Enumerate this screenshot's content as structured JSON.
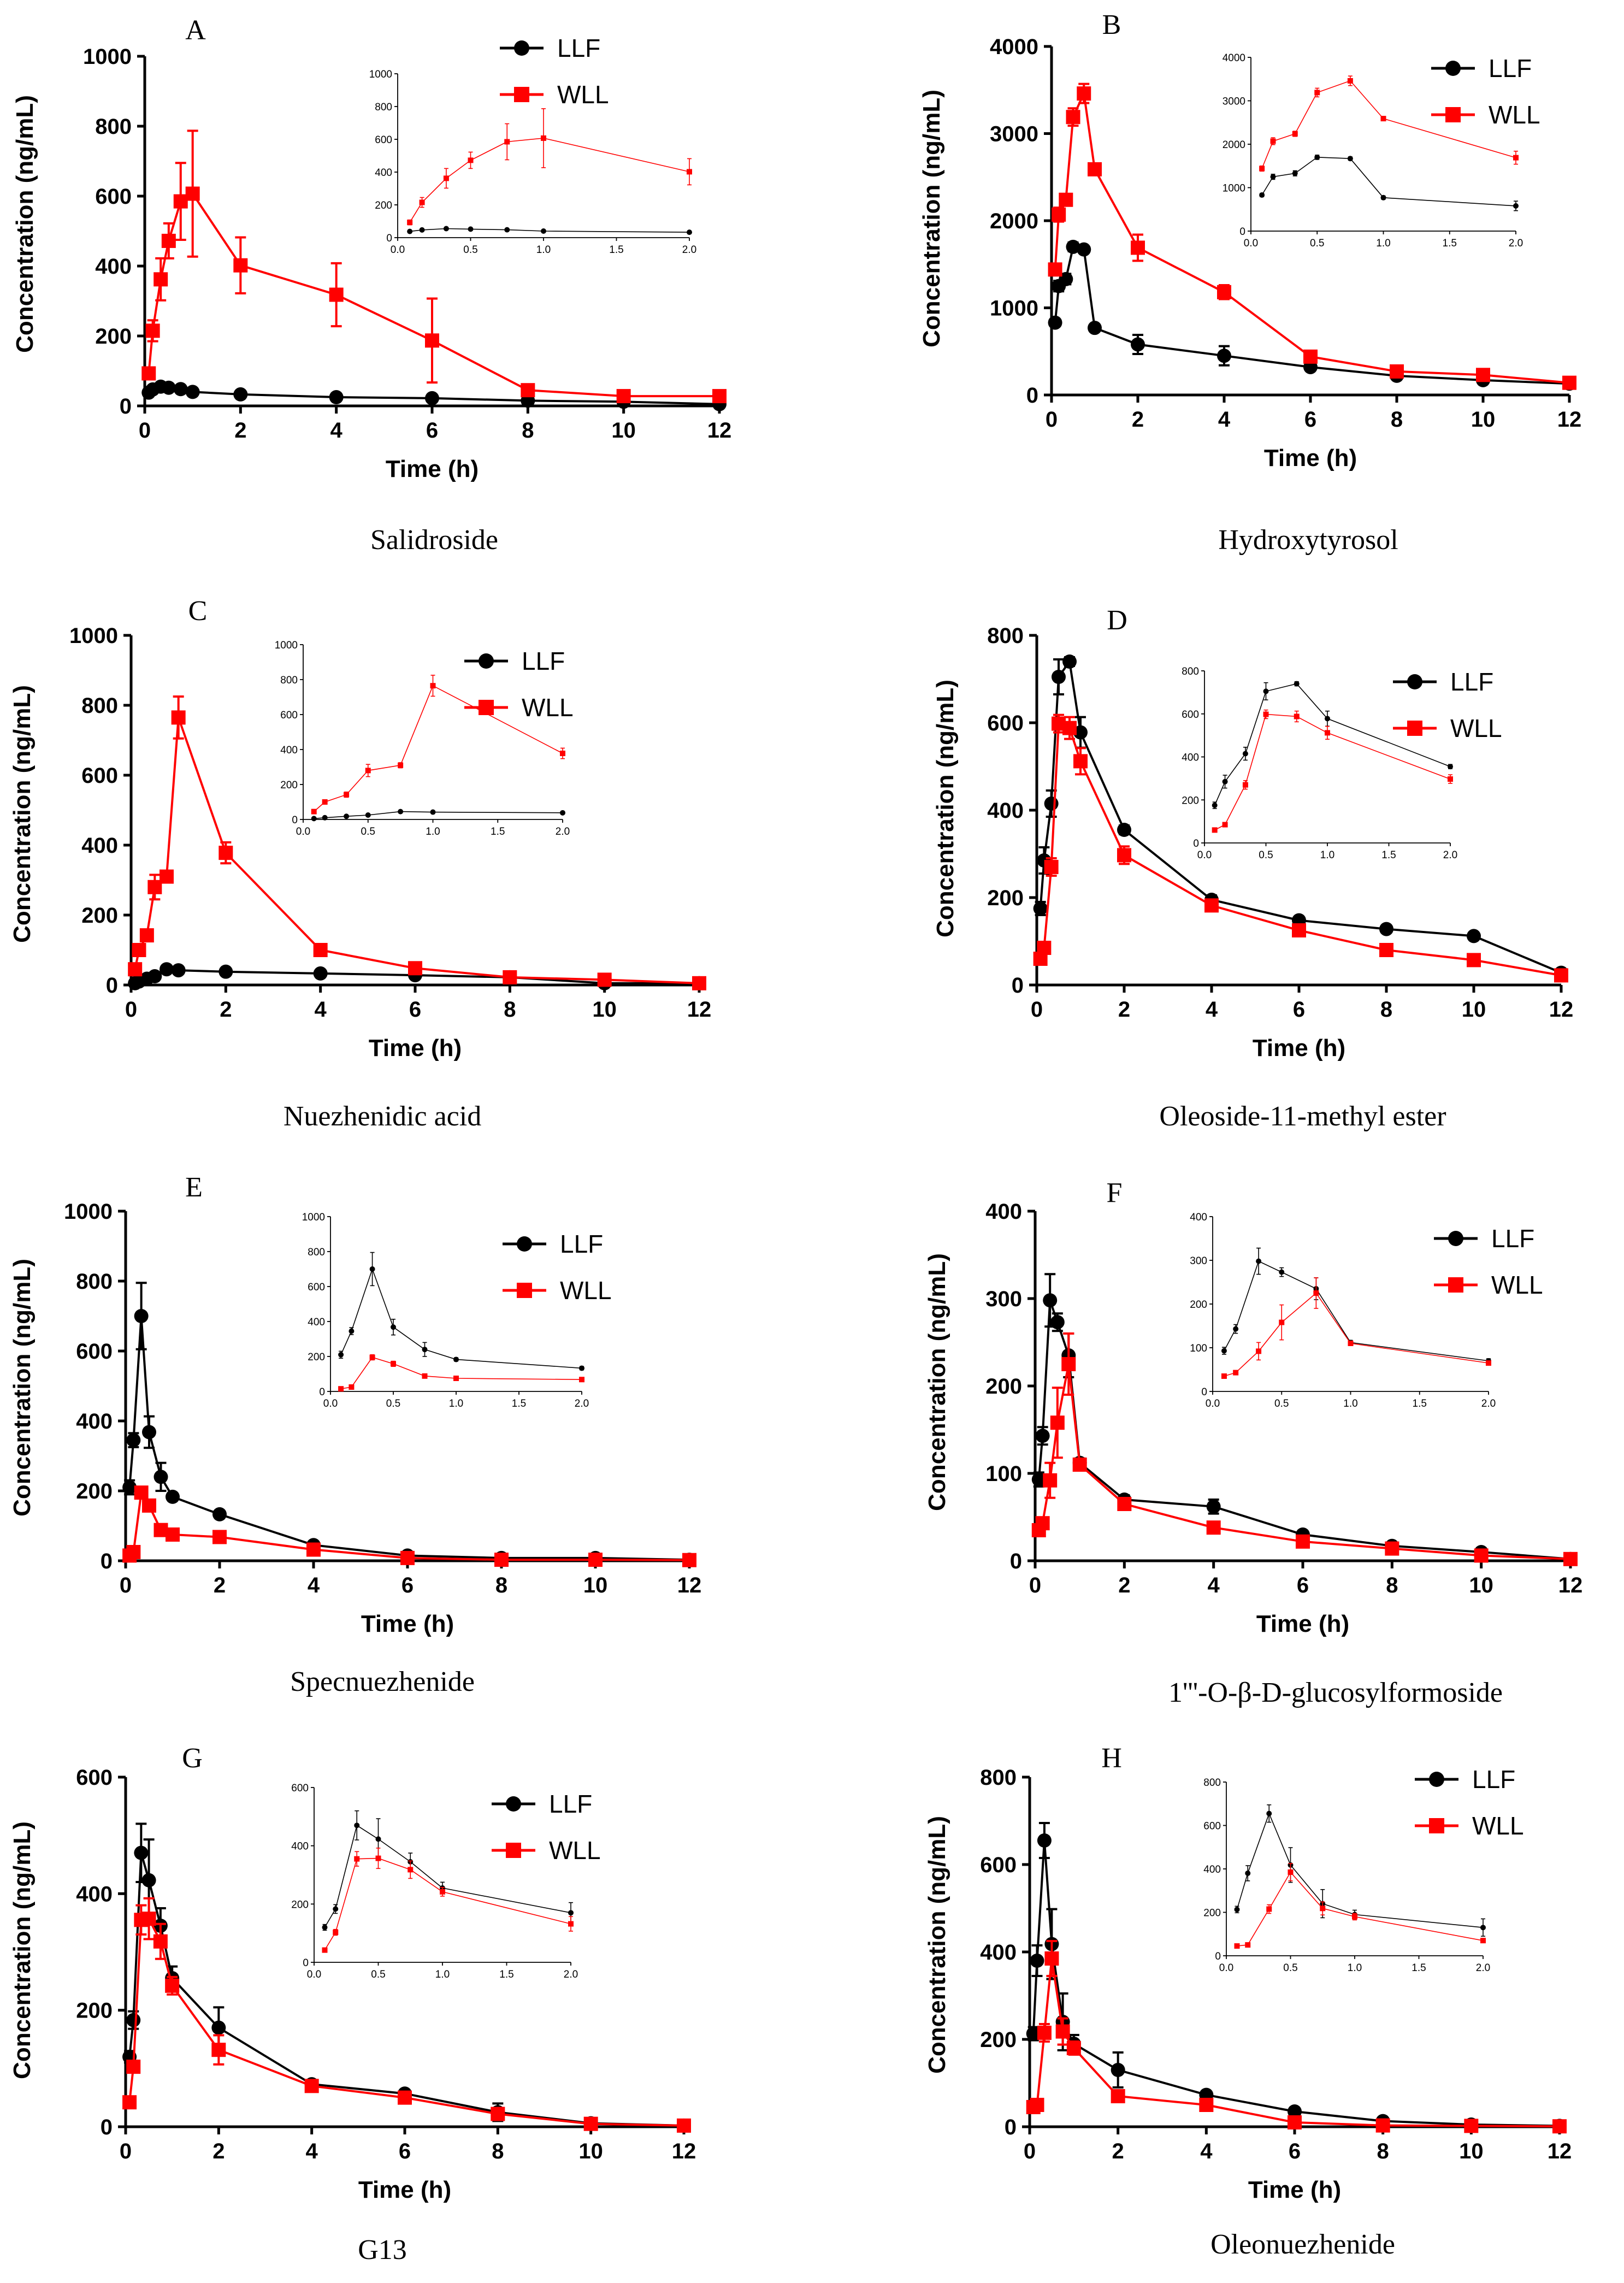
{
  "figure": {
    "x_axis_label": "Time (h)",
    "y_axis_label": "Concentration (ng/mL)",
    "legend": [
      "LLF",
      "WLL"
    ],
    "series_colors": {
      "LLF": "#000000",
      "WLL": "#ff0000"
    }
  },
  "chart_data": [
    {
      "type": "line",
      "letter": "A",
      "title": "Salidroside",
      "xlabel": "Time (h)",
      "ylabel": "Concentration (ng/mL)",
      "xlim": [
        0,
        12
      ],
      "xticks": [
        0,
        2,
        4,
        6,
        8,
        10,
        12
      ],
      "ylim": [
        0,
        1000
      ],
      "yticks": [
        0,
        200,
        400,
        600,
        800,
        1000
      ],
      "legend_position": "top-right",
      "x": [
        0.083,
        0.167,
        0.333,
        0.5,
        0.75,
        1,
        2,
        4,
        6,
        8,
        10,
        12
      ],
      "series": [
        {
          "name": "LLF",
          "color": "#000000",
          "marker": "circle",
          "values": [
            38,
            47,
            55,
            52,
            48,
            40,
            33,
            25,
            22,
            15,
            12,
            5
          ],
          "errors": [
            5,
            5,
            6,
            6,
            5,
            4,
            4,
            3,
            3,
            2,
            2,
            1
          ]
        },
        {
          "name": "WLL",
          "color": "#ff0000",
          "marker": "square",
          "values": [
            93,
            215,
            362,
            472,
            585,
            607,
            402,
            318,
            187,
            45,
            28,
            28
          ],
          "errors": [
            15,
            30,
            60,
            50,
            110,
            180,
            80,
            90,
            120,
            10,
            6,
            5
          ]
        }
      ],
      "inset": {
        "xlim": [
          0,
          2
        ],
        "xticks": [
          0.0,
          0.5,
          1.0,
          1.5,
          2.0
        ],
        "xtick_labels": [
          "0.0",
          "0.5",
          "1.0",
          "1.5",
          "2.0"
        ],
        "ylim": [
          0,
          1000
        ],
        "yticks": [
          0,
          200,
          400,
          600,
          800,
          1000
        ]
      }
    },
    {
      "type": "line",
      "letter": "B",
      "title": "Hydroxytyrosol",
      "xlabel": "Time (h)",
      "ylabel": "Concentration (ng/mL)",
      "xlim": [
        0,
        12
      ],
      "xticks": [
        0,
        2,
        4,
        6,
        8,
        10,
        12
      ],
      "ylim": [
        0,
        4000
      ],
      "yticks": [
        0,
        1000,
        2000,
        3000,
        4000
      ],
      "legend_position": "top-right",
      "x": [
        0.083,
        0.167,
        0.333,
        0.5,
        0.75,
        1,
        2,
        4,
        6,
        8,
        10,
        12
      ],
      "series": [
        {
          "name": "LLF",
          "color": "#000000",
          "marker": "circle",
          "values": [
            830,
            1250,
            1330,
            1700,
            1670,
            770,
            580,
            450,
            320,
            220,
            170,
            130
          ],
          "errors": [
            40,
            60,
            60,
            50,
            40,
            40,
            110,
            110,
            40,
            30,
            30,
            20
          ]
        },
        {
          "name": "WLL",
          "color": "#ff0000",
          "marker": "square",
          "values": [
            1440,
            2070,
            2240,
            3190,
            3460,
            2590,
            1690,
            1180,
            440,
            270,
            230,
            140
          ],
          "errors": [
            60,
            80,
            60,
            100,
            110,
            50,
            150,
            80,
            40,
            30,
            30,
            20
          ]
        }
      ],
      "inset": {
        "xlim": [
          0,
          2
        ],
        "xticks": [
          0.0,
          0.5,
          1.0,
          1.5,
          2.0
        ],
        "xtick_labels": [
          "0.0",
          "0.5",
          "1.0",
          "1.5",
          "2.0"
        ],
        "ylim": [
          0,
          4000
        ],
        "yticks": [
          0,
          1000,
          2000,
          3000,
          4000
        ]
      }
    },
    {
      "type": "line",
      "letter": "C",
      "title": "Nuezhenidic acid",
      "xlabel": "Time (h)",
      "ylabel": "Concentration (ng/mL)",
      "xlim": [
        0,
        12
      ],
      "xticks": [
        0,
        2,
        4,
        6,
        8,
        10,
        12
      ],
      "ylim": [
        0,
        1000
      ],
      "yticks": [
        0,
        200,
        400,
        600,
        800,
        1000
      ],
      "legend_position": "top-right",
      "x": [
        0.083,
        0.167,
        0.333,
        0.5,
        0.75,
        1,
        2,
        4,
        6,
        8,
        10,
        12
      ],
      "series": [
        {
          "name": "LLF",
          "color": "#000000",
          "marker": "circle",
          "values": [
            5,
            10,
            18,
            25,
            45,
            42,
            38,
            33,
            28,
            22,
            5,
            5
          ],
          "errors": [
            1,
            2,
            3,
            3,
            5,
            4,
            4,
            3,
            3,
            3,
            1,
            1
          ]
        },
        {
          "name": "WLL",
          "color": "#ff0000",
          "marker": "square",
          "values": [
            45,
            100,
            142,
            280,
            310,
            765,
            378,
            100,
            48,
            22,
            15,
            5
          ],
          "errors": [
            8,
            10,
            15,
            35,
            15,
            60,
            30,
            10,
            6,
            4,
            3,
            1
          ]
        }
      ],
      "inset": {
        "xlim": [
          0,
          2
        ],
        "xticks": [
          0.0,
          0.5,
          1.0,
          1.5,
          2.0
        ],
        "xtick_labels": [
          "0.0",
          "0.5",
          "1.0",
          "1.5",
          "2.0"
        ],
        "ylim": [
          0,
          1000
        ],
        "yticks": [
          0,
          200,
          400,
          600,
          800,
          1000
        ]
      }
    },
    {
      "type": "line",
      "letter": "D",
      "title": "Oleoside-11-methyl ester",
      "xlabel": "Time (h)",
      "ylabel": "Concentration (ng/mL)",
      "xlim": [
        0,
        12
      ],
      "xticks": [
        0,
        2,
        4,
        6,
        8,
        10,
        12
      ],
      "ylim": [
        0,
        800
      ],
      "yticks": [
        0,
        200,
        400,
        600,
        800
      ],
      "legend_position": "top-right",
      "x": [
        0.083,
        0.167,
        0.333,
        0.5,
        0.75,
        1,
        2,
        4,
        6,
        8,
        10,
        12
      ],
      "series": [
        {
          "name": "LLF",
          "color": "#000000",
          "marker": "circle",
          "values": [
            175,
            285,
            415,
            705,
            740,
            578,
            355,
            195,
            148,
            128,
            112,
            28
          ],
          "errors": [
            15,
            30,
            30,
            40,
            10,
            35,
            10,
            10,
            8,
            8,
            8,
            5
          ]
        },
        {
          "name": "WLL",
          "color": "#ff0000",
          "marker": "square",
          "values": [
            60,
            85,
            270,
            598,
            588,
            512,
            297,
            182,
            125,
            80,
            57,
            22
          ],
          "errors": [
            8,
            10,
            20,
            20,
            25,
            30,
            20,
            10,
            8,
            6,
            5,
            3
          ]
        }
      ],
      "inset": {
        "xlim": [
          0,
          2
        ],
        "xticks": [
          0.0,
          0.5,
          1.0,
          1.5,
          2.0
        ],
        "xtick_labels": [
          "0.0",
          "0.5",
          "1.0",
          "1.5",
          "2.0"
        ],
        "ylim": [
          0,
          800
        ],
        "yticks": [
          0,
          200,
          400,
          600,
          800
        ]
      }
    },
    {
      "type": "line",
      "letter": "E",
      "title": "Specnuezhenide",
      "xlabel": "Time (h)",
      "ylabel": "Concentration (ng/mL)",
      "xlim": [
        0,
        12
      ],
      "xticks": [
        0,
        2,
        4,
        6,
        8,
        10,
        12
      ],
      "ylim": [
        0,
        1000
      ],
      "yticks": [
        0,
        200,
        400,
        600,
        800,
        1000
      ],
      "legend_position": "top-right",
      "x": [
        0.083,
        0.167,
        0.333,
        0.5,
        0.75,
        1,
        2,
        4,
        6,
        8,
        10,
        12
      ],
      "series": [
        {
          "name": "LLF",
          "color": "#000000",
          "marker": "circle",
          "values": [
            210,
            345,
            700,
            368,
            240,
            183,
            133,
            45,
            15,
            8,
            8,
            3
          ],
          "errors": [
            20,
            20,
            95,
            45,
            40,
            10,
            10,
            6,
            3,
            2,
            2,
            1
          ]
        },
        {
          "name": "WLL",
          "color": "#ff0000",
          "marker": "square",
          "values": [
            15,
            25,
            195,
            158,
            88,
            75,
            68,
            32,
            8,
            3,
            3,
            2
          ],
          "errors": [
            3,
            4,
            15,
            15,
            8,
            6,
            6,
            4,
            2,
            1,
            1,
            1
          ]
        }
      ],
      "inset": {
        "xlim": [
          0,
          2
        ],
        "xticks": [
          0.0,
          0.5,
          1.0,
          1.5,
          2.0
        ],
        "xtick_labels": [
          "0.0",
          "0.5",
          "1.0",
          "1.5",
          "2.0"
        ],
        "ylim": [
          0,
          1000
        ],
        "yticks": [
          0,
          200,
          400,
          600,
          800,
          1000
        ]
      }
    },
    {
      "type": "line",
      "letter": "F",
      "title": "1'''-O-β-D-glucosylformoside",
      "xlabel": "Time (h)",
      "ylabel": "Concentration (ng/mL)",
      "xlim": [
        0,
        12
      ],
      "xticks": [
        0,
        2,
        4,
        6,
        8,
        10,
        12
      ],
      "ylim": [
        0,
        400
      ],
      "yticks": [
        0,
        100,
        200,
        300,
        400
      ],
      "legend_position": "top-right",
      "x": [
        0.083,
        0.167,
        0.333,
        0.5,
        0.75,
        1,
        2,
        4,
        6,
        8,
        10,
        12
      ],
      "series": [
        {
          "name": "LLF",
          "color": "#000000",
          "marker": "circle",
          "values": [
            93,
            143,
            298,
            273,
            235,
            112,
            70,
            62,
            30,
            17,
            10,
            2
          ],
          "errors": [
            8,
            10,
            30,
            10,
            25,
            5,
            5,
            8,
            3,
            2,
            2,
            1
          ]
        },
        {
          "name": "WLL",
          "color": "#ff0000",
          "marker": "square",
          "values": [
            35,
            43,
            92,
            158,
            225,
            110,
            65,
            38,
            22,
            14,
            6,
            2
          ],
          "errors": [
            5,
            5,
            20,
            40,
            35,
            5,
            5,
            3,
            3,
            2,
            1,
            1
          ]
        }
      ],
      "inset": {
        "xlim": [
          0,
          2
        ],
        "xticks": [
          0.0,
          0.5,
          1.0,
          1.5,
          2.0
        ],
        "xtick_labels": [
          "0.0",
          "0.5",
          "1.0",
          "1.5",
          "2.0"
        ],
        "ylim": [
          0,
          400
        ],
        "yticks": [
          0,
          100,
          200,
          300,
          400
        ]
      }
    },
    {
      "type": "line",
      "letter": "G",
      "title": "G13",
      "xlabel": "Time (h)",
      "ylabel": "Concentration (ng/mL)",
      "xlim": [
        0,
        12
      ],
      "xticks": [
        0,
        2,
        4,
        6,
        8,
        10,
        12
      ],
      "ylim": [
        0,
        600
      ],
      "yticks": [
        0,
        200,
        400,
        600
      ],
      "legend_position": "top-right",
      "x": [
        0.083,
        0.167,
        0.333,
        0.5,
        0.75,
        1,
        2,
        4,
        6,
        8,
        10,
        12
      ],
      "series": [
        {
          "name": "LLF",
          "color": "#000000",
          "marker": "circle",
          "values": [
            120,
            183,
            470,
            423,
            345,
            255,
            170,
            73,
            57,
            25,
            6,
            2
          ],
          "errors": [
            10,
            15,
            50,
            70,
            30,
            20,
            35,
            5,
            5,
            15,
            2,
            1
          ]
        },
        {
          "name": "WLL",
          "color": "#ff0000",
          "marker": "square",
          "values": [
            42,
            103,
            355,
            357,
            318,
            242,
            132,
            70,
            50,
            22,
            5,
            2
          ],
          "errors": [
            5,
            10,
            25,
            35,
            30,
            15,
            25,
            5,
            5,
            5,
            1,
            1
          ]
        }
      ],
      "inset": {
        "xlim": [
          0,
          2
        ],
        "xticks": [
          0.0,
          0.5,
          1.0,
          1.5,
          2.0
        ],
        "xtick_labels": [
          "0.0",
          "0.5",
          "1.0",
          "1.5",
          "2.0"
        ],
        "ylim": [
          0,
          600
        ],
        "yticks": [
          0,
          200,
          400,
          600
        ]
      }
    },
    {
      "type": "line",
      "letter": "H",
      "title": "Oleonuezhenide",
      "xlabel": "Time (h)",
      "ylabel": "Concentration (ng/mL)",
      "xlim": [
        0,
        12
      ],
      "xticks": [
        0,
        2,
        4,
        6,
        8,
        10,
        12
      ],
      "ylim": [
        0,
        800
      ],
      "yticks": [
        0,
        200,
        400,
        600,
        800
      ],
      "legend_position": "top-right",
      "x": [
        0.083,
        0.167,
        0.333,
        0.5,
        0.75,
        1,
        2,
        4,
        6,
        8,
        10,
        12
      ],
      "series": [
        {
          "name": "LLF",
          "color": "#000000",
          "marker": "circle",
          "values": [
            213,
            380,
            655,
            418,
            240,
            190,
            130,
            73,
            35,
            13,
            5,
            2
          ],
          "errors": [
            15,
            35,
            40,
            80,
            65,
            20,
            40,
            5,
            5,
            3,
            2,
            1
          ]
        },
        {
          "name": "WLL",
          "color": "#ff0000",
          "marker": "square",
          "values": [
            45,
            50,
            215,
            385,
            218,
            180,
            70,
            50,
            10,
            3,
            2,
            1
          ],
          "errors": [
            5,
            5,
            20,
            40,
            30,
            15,
            10,
            5,
            3,
            1,
            1,
            1
          ]
        }
      ],
      "inset": {
        "xlim": [
          0,
          2
        ],
        "xticks": [
          0.0,
          0.5,
          1.0,
          1.5,
          2.0
        ],
        "xtick_labels": [
          "0.0",
          "0.5",
          "1.0",
          "1.5",
          "2.0"
        ],
        "ylim": [
          0,
          800
        ],
        "yticks": [
          0,
          200,
          400,
          600,
          800
        ]
      }
    }
  ]
}
